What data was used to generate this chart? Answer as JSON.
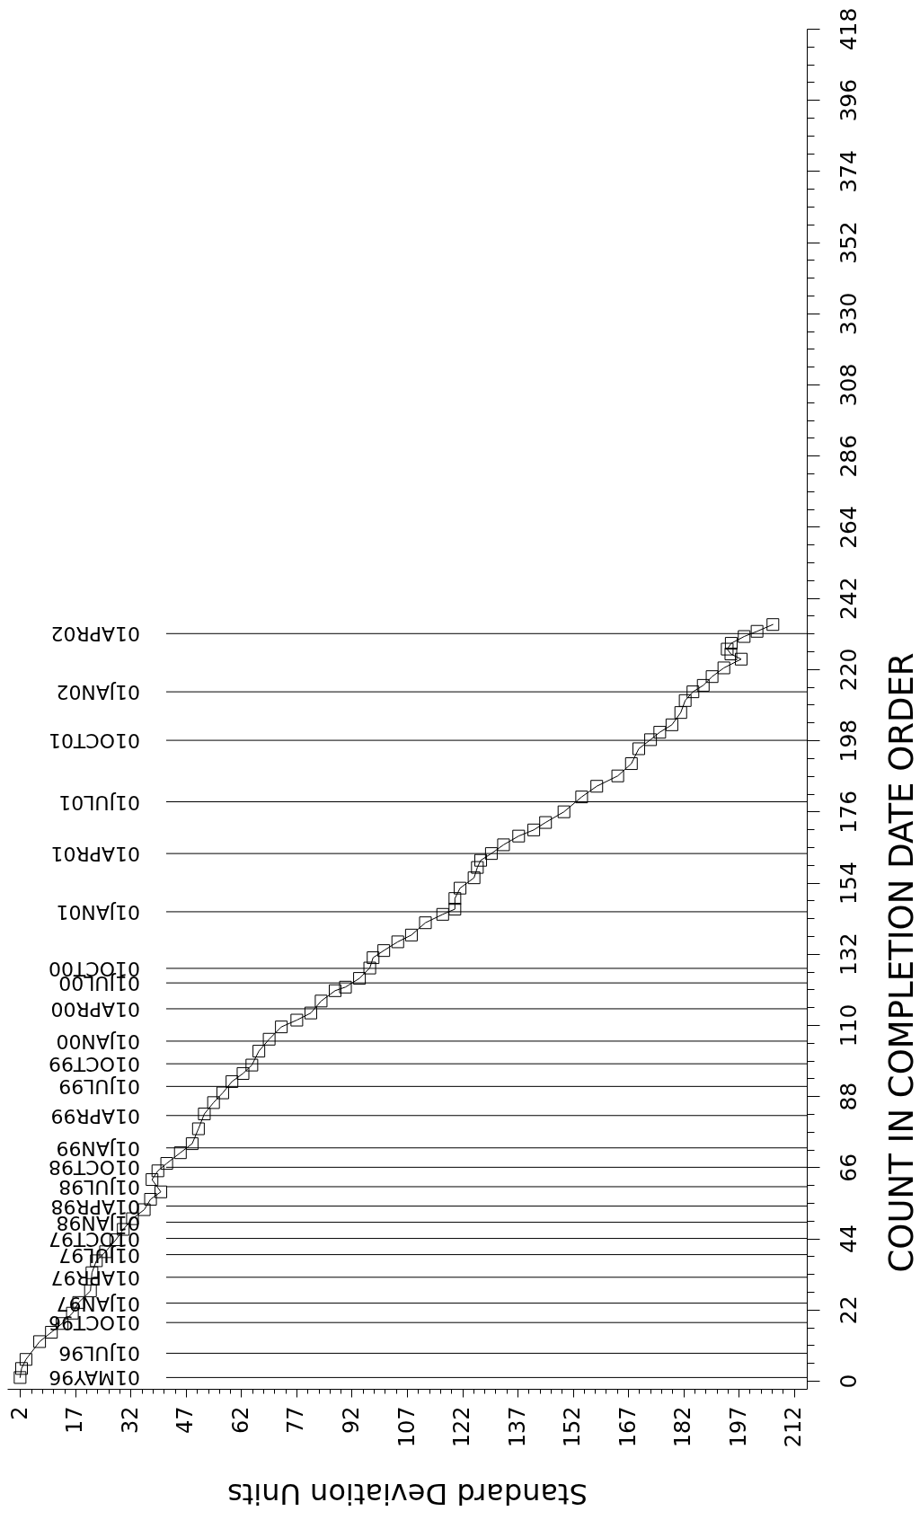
{
  "chart_data": {
    "type": "line",
    "xlabel": "Standard Deviation Units",
    "ylabel": "COUNT IN COMPLETION DATE ORDER",
    "marker": "square",
    "xlim": [
      -1.5,
      215.5
    ],
    "ylim": [
      -2.5,
      418
    ],
    "xticks": [
      2,
      {
        "value": 5,
        "label": null
      },
      {
        "value": 8,
        "label": null
      },
      {
        "value": 11,
        "label": null
      },
      {
        "value": 14,
        "label": null
      },
      17,
      {
        "value": 20,
        "label": null
      },
      {
        "value": 23,
        "label": null
      },
      {
        "value": 26,
        "label": null
      },
      {
        "value": 29,
        "label": null
      },
      32,
      {
        "value": 35,
        "label": null
      },
      {
        "value": 38,
        "label": null
      },
      {
        "value": 41,
        "label": null
      },
      {
        "value": 44,
        "label": null
      },
      47,
      {
        "value": 50,
        "label": null
      },
      {
        "value": 53,
        "label": null
      },
      {
        "value": 56,
        "label": null
      },
      {
        "value": 59,
        "label": null
      },
      62,
      {
        "value": 65,
        "label": null
      },
      {
        "value": 68,
        "label": null
      },
      {
        "value": 71,
        "label": null
      },
      {
        "value": 74,
        "label": null
      },
      77,
      {
        "value": 80,
        "label": null
      },
      {
        "value": 83,
        "label": null
      },
      {
        "value": 86,
        "label": null
      },
      {
        "value": 89,
        "label": null
      },
      92,
      {
        "value": 95,
        "label": null
      },
      {
        "value": 98,
        "label": null
      },
      {
        "value": 101,
        "label": null
      },
      {
        "value": 104,
        "label": null
      },
      107,
      {
        "value": 110,
        "label": null
      },
      {
        "value": 113,
        "label": null
      },
      {
        "value": 116,
        "label": null
      },
      {
        "value": 119,
        "label": null
      },
      122,
      {
        "value": 125,
        "label": null
      },
      {
        "value": 128,
        "label": null
      },
      {
        "value": 131,
        "label": null
      },
      {
        "value": 134,
        "label": null
      },
      137,
      {
        "value": 140,
        "label": null
      },
      {
        "value": 143,
        "label": null
      },
      {
        "value": 146,
        "label": null
      },
      {
        "value": 149,
        "label": null
      },
      152,
      {
        "value": 155,
        "label": null
      },
      {
        "value": 158,
        "label": null
      },
      {
        "value": 161,
        "label": null
      },
      {
        "value": 164,
        "label": null
      },
      167,
      {
        "value": 170,
        "label": null
      },
      {
        "value": 173,
        "label": null
      },
      {
        "value": 176,
        "label": null
      },
      {
        "value": 179,
        "label": null
      },
      182,
      {
        "value": 185,
        "label": null
      },
      {
        "value": 188,
        "label": null
      },
      {
        "value": 191,
        "label": null
      },
      {
        "value": 194,
        "label": null
      },
      197,
      {
        "value": 200,
        "label": null
      },
      {
        "value": 203,
        "label": null
      },
      {
        "value": 206,
        "label": null
      },
      {
        "value": 209,
        "label": null
      },
      212
    ],
    "yticks": [
      0,
      {
        "value": 5.5,
        "label": null
      },
      {
        "value": 11,
        "label": null
      },
      {
        "value": 16.5,
        "label": null
      },
      22,
      {
        "value": 27.5,
        "label": null
      },
      {
        "value": 33,
        "label": null
      },
      {
        "value": 38.5,
        "label": null
      },
      44,
      {
        "value": 49.5,
        "label": null
      },
      {
        "value": 55,
        "label": null
      },
      {
        "value": 60.5,
        "label": null
      },
      66,
      {
        "value": 71.5,
        "label": null
      },
      {
        "value": 77,
        "label": null
      },
      {
        "value": 82.5,
        "label": null
      },
      88,
      {
        "value": 93.5,
        "label": null
      },
      {
        "value": 99,
        "label": null
      },
      {
        "value": 104.5,
        "label": null
      },
      110,
      {
        "value": 115.5,
        "label": null
      },
      {
        "value": 121,
        "label": null
      },
      {
        "value": 126.5,
        "label": null
      },
      132,
      {
        "value": 137.5,
        "label": null
      },
      {
        "value": 143,
        "label": null
      },
      {
        "value": 148.5,
        "label": null
      },
      154,
      {
        "value": 159.5,
        "label": null
      },
      {
        "value": 165,
        "label": null
      },
      {
        "value": 170.5,
        "label": null
      },
      176,
      {
        "value": 181.5,
        "label": null
      },
      {
        "value": 187,
        "label": null
      },
      {
        "value": 192.5,
        "label": null
      },
      198,
      {
        "value": 203.5,
        "label": null
      },
      {
        "value": 209,
        "label": null
      },
      {
        "value": 214.5,
        "label": null
      },
      220,
      {
        "value": 225.5,
        "label": null
      },
      {
        "value": 231,
        "label": null
      },
      {
        "value": 236.5,
        "label": null
      },
      242,
      {
        "value": 247.5,
        "label": null
      },
      {
        "value": 253,
        "label": null
      },
      {
        "value": 258.5,
        "label": null
      },
      264,
      {
        "value": 269.5,
        "label": null
      },
      {
        "value": 275,
        "label": null
      },
      {
        "value": 280.5,
        "label": null
      },
      286,
      {
        "value": 291.5,
        "label": null
      },
      {
        "value": 297,
        "label": null
      },
      {
        "value": 302.5,
        "label": null
      },
      308,
      {
        "value": 313.5,
        "label": null
      },
      {
        "value": 319,
        "label": null
      },
      {
        "value": 324.5,
        "label": null
      },
      330,
      {
        "value": 335.5,
        "label": null
      },
      {
        "value": 341,
        "label": null
      },
      {
        "value": 346.5,
        "label": null
      },
      352,
      {
        "value": 357.5,
        "label": null
      },
      {
        "value": 363,
        "label": null
      },
      {
        "value": 368.5,
        "label": null
      },
      374,
      {
        "value": 379.5,
        "label": null
      },
      {
        "value": 385,
        "label": null
      },
      {
        "value": 390.5,
        "label": null
      },
      396,
      {
        "value": 401.5,
        "label": null
      },
      {
        "value": 407,
        "label": null
      },
      {
        "value": 412.5,
        "label": null
      },
      418
    ],
    "series": [
      {
        "color": "#000000",
        "x": [
          2.0,
          2.4,
          3.6,
          7.3,
          10.5,
          13.4,
          16.2,
          17.9,
          21.1,
          21.5,
          22.7,
          25.2,
          28.0,
          30.0,
          32.5,
          35.7,
          37.4,
          40.2,
          37.8,
          39.4,
          41.8,
          45.5,
          48.7,
          50.4,
          52.0,
          54.5,
          57.0,
          59.5,
          62.5,
          64.9,
          66.8,
          69.6,
          72.9,
          77.1,
          80.9,
          83.7,
          87.5,
          90.3,
          94.1,
          96.9,
          97.8,
          100.7,
          104.5,
          108.2,
          112.0,
          116.7,
          120.0,
          120.0,
          121.4,
          125.2,
          126.1,
          127.0,
          129.9,
          133.2,
          137.3,
          141.4,
          144.6,
          149.6,
          154.4,
          158.5,
          164.2,
          167.9,
          169.9,
          173.1,
          175.6,
          178.9,
          181.3,
          182.5,
          184.6,
          187.4,
          189.8,
          193.0,
          197.7,
          194.9,
          193.9,
          195.0,
          198.5,
          202.0,
          206.3
        ],
        "values": [
          1.0,
          3.8,
          6.6,
          12.1,
          15.0,
          17.7,
          20.9,
          24.2,
          27.8,
          33.4,
          37.1,
          39.9,
          43.6,
          46.8,
          50.1,
          52.9,
          56.1,
          58.4,
          62.2,
          64.9,
          67.2,
          70.5,
          73.3,
          77.9,
          82.5,
          86.0,
          89.0,
          92.5,
          95.0,
          97.6,
          101.9,
          105.6,
          109.4,
          111.5,
          113.7,
          117.4,
          120.6,
          121.7,
          124.4,
          127.6,
          130.8,
          133.0,
          135.7,
          137.8,
          141.6,
          144.2,
          145.8,
          149.1,
          152.3,
          155.5,
          158.7,
          160.9,
          163.0,
          165.7,
          168.4,
          170.3,
          172.6,
          175.9,
          180.5,
          183.8,
          187.0,
          190.8,
          195.4,
          198.2,
          200.5,
          202.8,
          206.6,
          210.3,
          213.0,
          215.0,
          217.7,
          220.4,
          223.1,
          224.7,
          226.2,
          228.0,
          230.1,
          231.7,
          233.8
        ]
      }
    ],
    "ref_lines": [
      {
        "axis": "y",
        "value": 1,
        "label": "01MAY96"
      },
      {
        "axis": "y",
        "value": 8.5,
        "label": "01JUL96"
      },
      {
        "axis": "y",
        "value": 18,
        "label": "01OCT96"
      },
      {
        "axis": "y",
        "value": 24,
        "label": "01JAN97"
      },
      {
        "axis": "y",
        "value": 32,
        "label": "01APR97"
      },
      {
        "axis": "y",
        "value": 39,
        "label": "01JUL97"
      },
      {
        "axis": "y",
        "value": 44,
        "label": "01OCT97"
      },
      {
        "axis": "y",
        "value": 49,
        "label": "01JAN98"
      },
      {
        "axis": "y",
        "value": 54,
        "label": "01APR98"
      },
      {
        "axis": "y",
        "value": 60,
        "label": "01JUL98"
      },
      {
        "axis": "y",
        "value": 66,
        "label": "01OCT98"
      },
      {
        "axis": "y",
        "value": 72,
        "label": "01JAN99"
      },
      {
        "axis": "y",
        "value": 82,
        "label": "01APR99"
      },
      {
        "axis": "y",
        "value": 91,
        "label": "01JUL99"
      },
      {
        "axis": "y",
        "value": 98,
        "label": "01OCT99"
      },
      {
        "axis": "y",
        "value": 105,
        "label": "01JAN00"
      },
      {
        "axis": "y",
        "value": 115,
        "label": "01APR00"
      },
      {
        "axis": "y",
        "value": 123,
        "label": "01JUL00"
      },
      {
        "axis": "y",
        "value": 127.5,
        "label": "01OCT00"
      },
      {
        "axis": "y",
        "value": 145,
        "label": "01JAN01"
      },
      {
        "axis": "y",
        "value": 163,
        "label": "01APR01"
      },
      {
        "axis": "y",
        "value": 179,
        "label": "01JUL01"
      },
      {
        "axis": "y",
        "value": 198,
        "label": "01OCT01"
      },
      {
        "axis": "y",
        "value": 213,
        "label": "01JAN02"
      },
      {
        "axis": "y",
        "value": 231,
        "label": "01APR02"
      }
    ]
  }
}
